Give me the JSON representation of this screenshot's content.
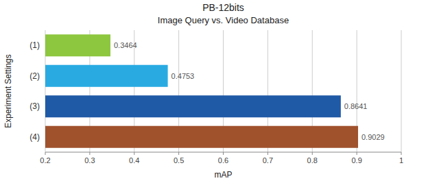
{
  "chart_data": {
    "type": "bar",
    "orientation": "horizontal",
    "title": "PB-12bits",
    "subtitle": "Image Query vs. Video Database",
    "categories": [
      "(1)",
      "(2)",
      "(3)",
      "(4)"
    ],
    "values": [
      0.3464,
      0.4753,
      0.8641,
      0.9029
    ],
    "colors": [
      "#8DC63F",
      "#29ABE2",
      "#1F5AA6",
      "#A0522D"
    ],
    "data_labels": true,
    "xlabel": "mAP",
    "ylabel": "Experiment Settings",
    "xlim": [
      0.2,
      1
    ],
    "xticks": [
      0.2,
      0.3,
      0.4,
      0.5,
      0.6,
      0.7,
      0.8,
      0.9,
      1
    ],
    "grid": true
  }
}
